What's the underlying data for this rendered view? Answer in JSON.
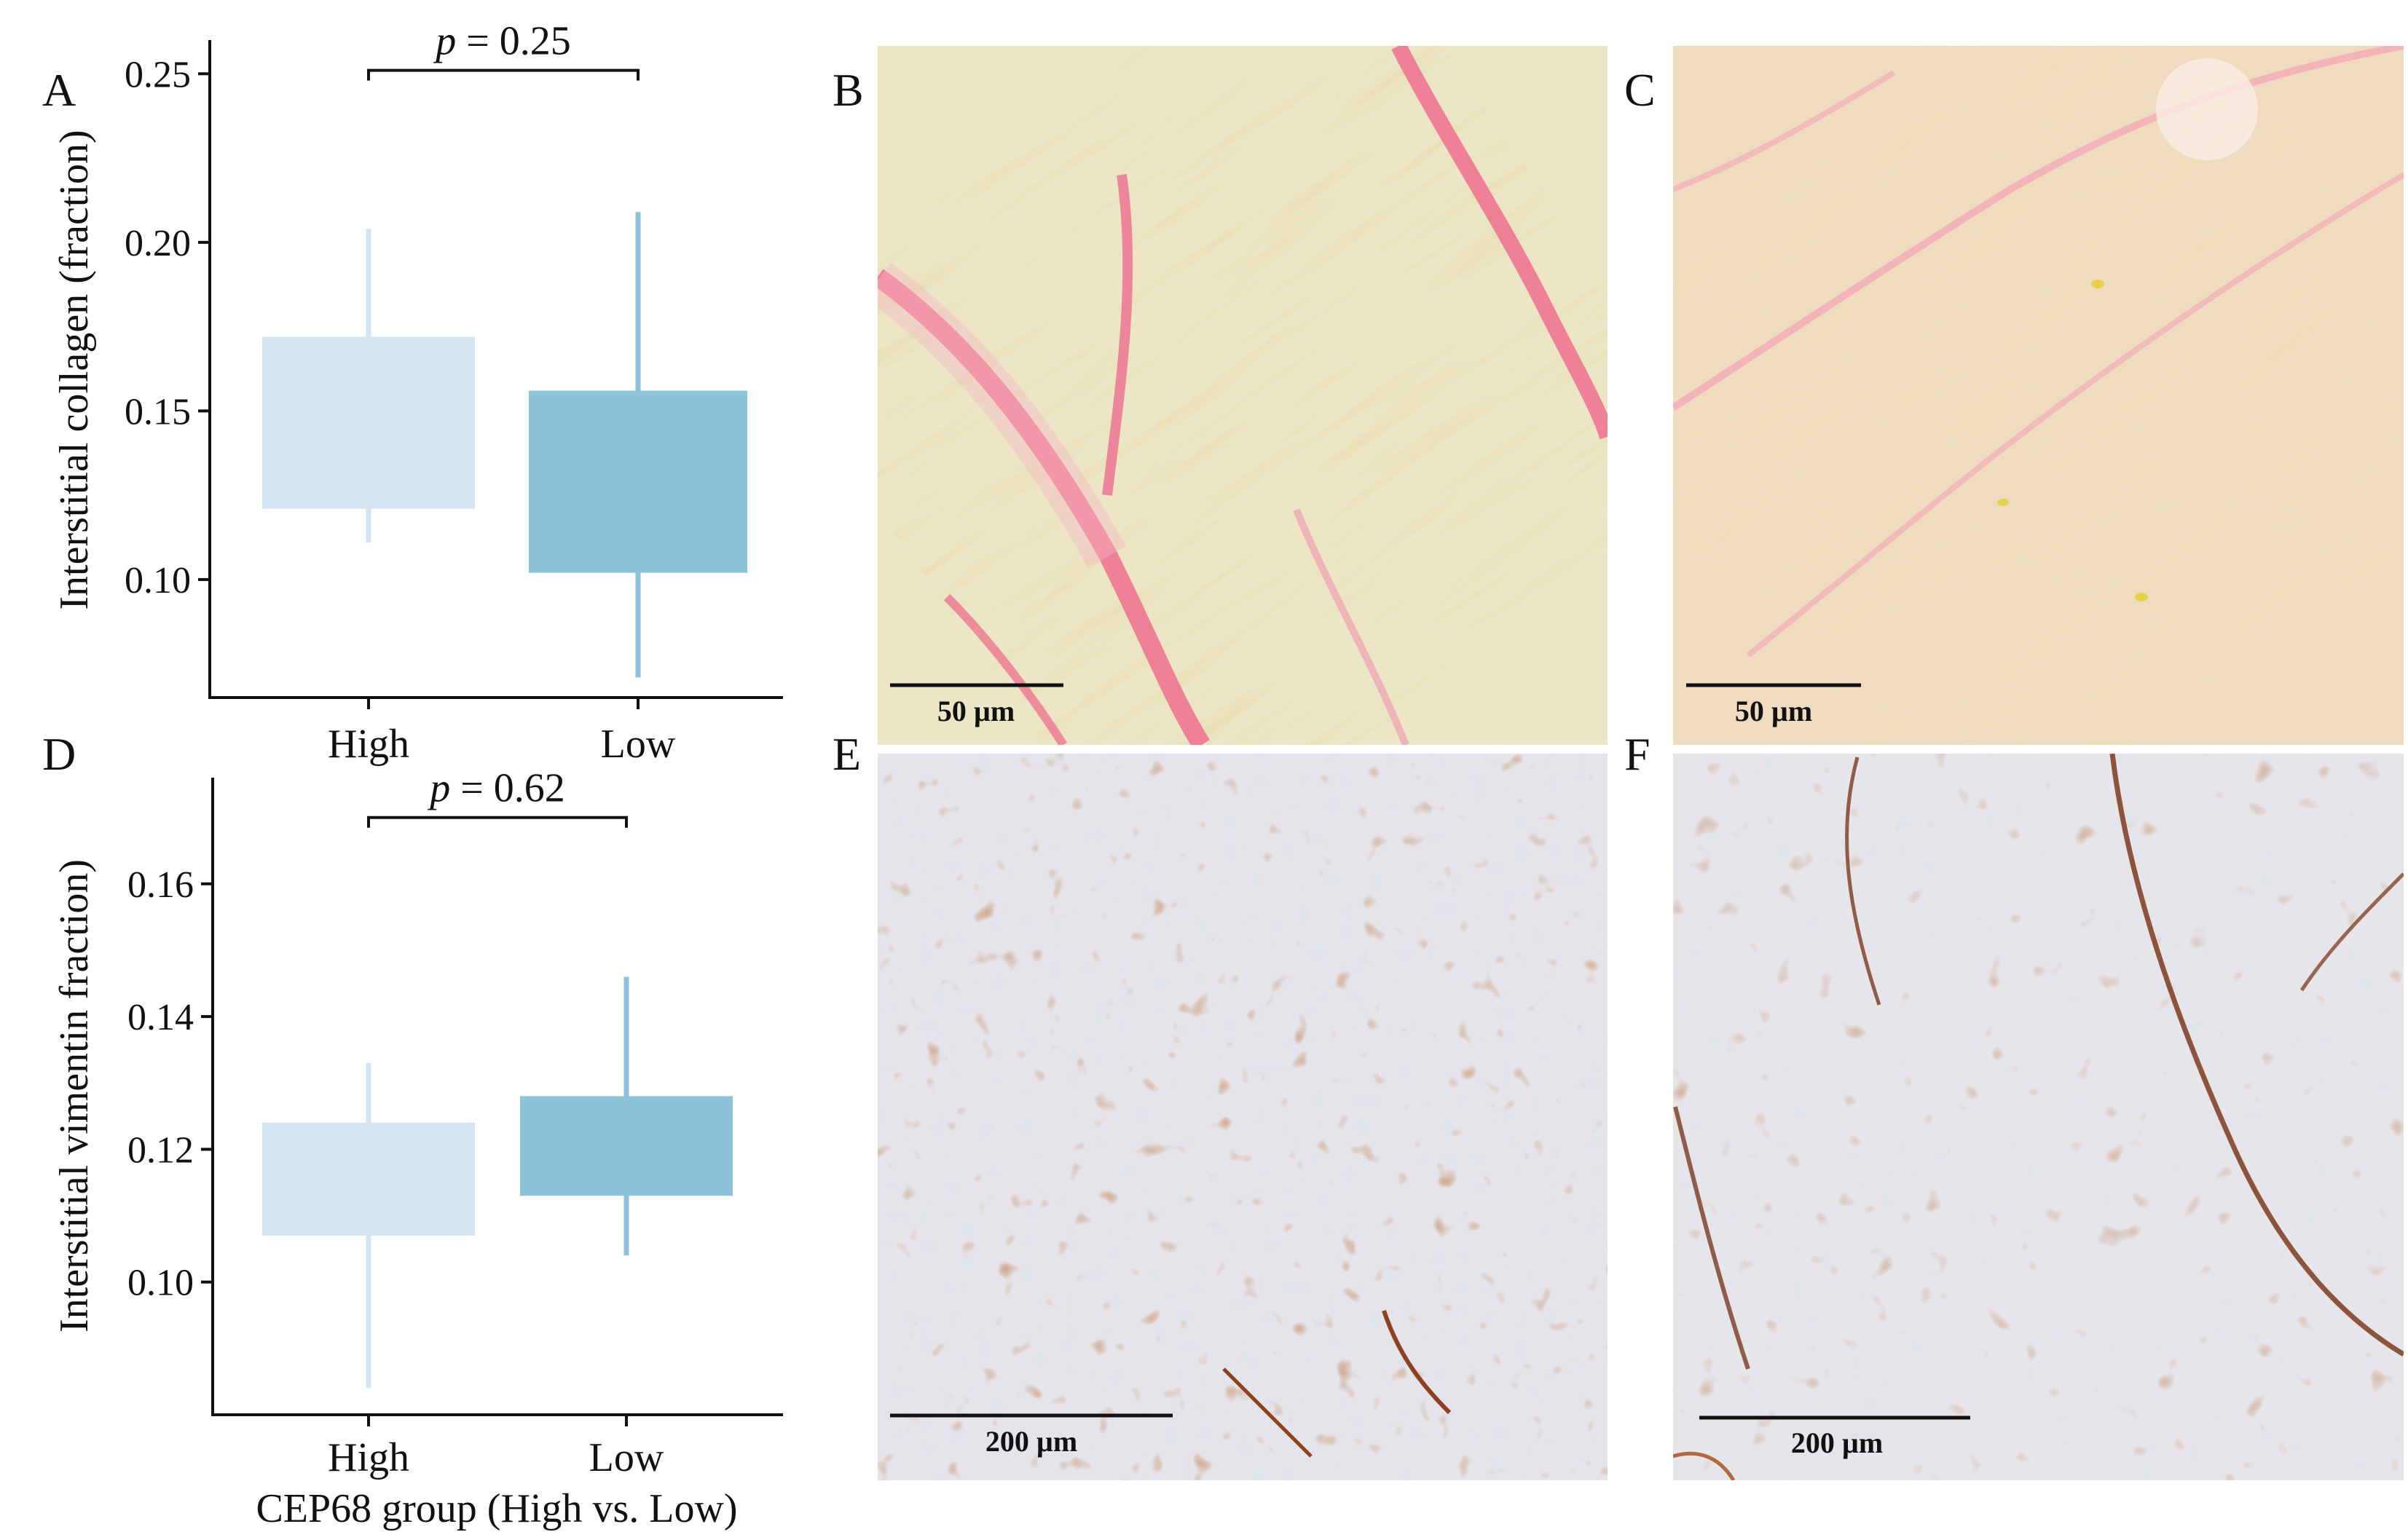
{
  "panels": {
    "A": "A",
    "B": "B",
    "C": "C",
    "D": "D",
    "E": "E",
    "F": "F"
  },
  "colors": {
    "high_box": "#d3e5f2",
    "low_box": "#8cc3d8",
    "axis": "#111111",
    "collagen_bg": "#ece4c4",
    "collagen_fiber": "#c9b96a",
    "sirius_red": "#ee6e8e",
    "ihc_bg": "#e3e4ea",
    "ihc_brown": "#9a4b28",
    "ihc_nucleus": "#a9cbe0"
  },
  "scalebars": {
    "B": "50 µm",
    "C": "50 µm",
    "E": "200 µm",
    "F": "200 µm"
  },
  "chart_data": [
    {
      "panel": "A",
      "type": "box",
      "categories": [
        "High",
        "Low"
      ],
      "ylabel": "Interstitial collagen (fraction)",
      "xlabel": "",
      "ylim": [
        0.065,
        0.26
      ],
      "yticks": [
        0.1,
        0.15,
        0.2,
        0.25
      ],
      "ytick_labels": [
        "0.10",
        "0.15",
        "0.20",
        "0.25"
      ],
      "boxes": [
        {
          "category": "High",
          "whisker_low": 0.111,
          "q1": 0.121,
          "q3": 0.172,
          "whisker_high": 0.204
        },
        {
          "category": "Low",
          "whisker_low": 0.071,
          "q1": 0.102,
          "q3": 0.156,
          "whisker_high": 0.209
        }
      ],
      "annotation": {
        "p_symbol": "p",
        "p_text": " = 0.25",
        "bracket_y": 0.251
      }
    },
    {
      "panel": "D",
      "type": "box",
      "categories": [
        "High",
        "Low"
      ],
      "ylabel": "Interstitial vimentin fraction)",
      "xlabel": "CEP68 group (High vs. Low)",
      "ylim": [
        0.08,
        0.176
      ],
      "yticks": [
        0.1,
        0.12,
        0.14,
        0.16
      ],
      "ytick_labels": [
        "0.10",
        "0.12",
        "0.14",
        "0.16"
      ],
      "boxes": [
        {
          "category": "High",
          "whisker_low": 0.084,
          "q1": 0.107,
          "q3": 0.124,
          "whisker_high": 0.133
        },
        {
          "category": "Low",
          "whisker_low": 0.104,
          "q1": 0.113,
          "q3": 0.128,
          "whisker_high": 0.146
        }
      ],
      "annotation": {
        "p_symbol": "p",
        "p_text": " = 0.62",
        "bracket_y": 0.17
      }
    }
  ]
}
